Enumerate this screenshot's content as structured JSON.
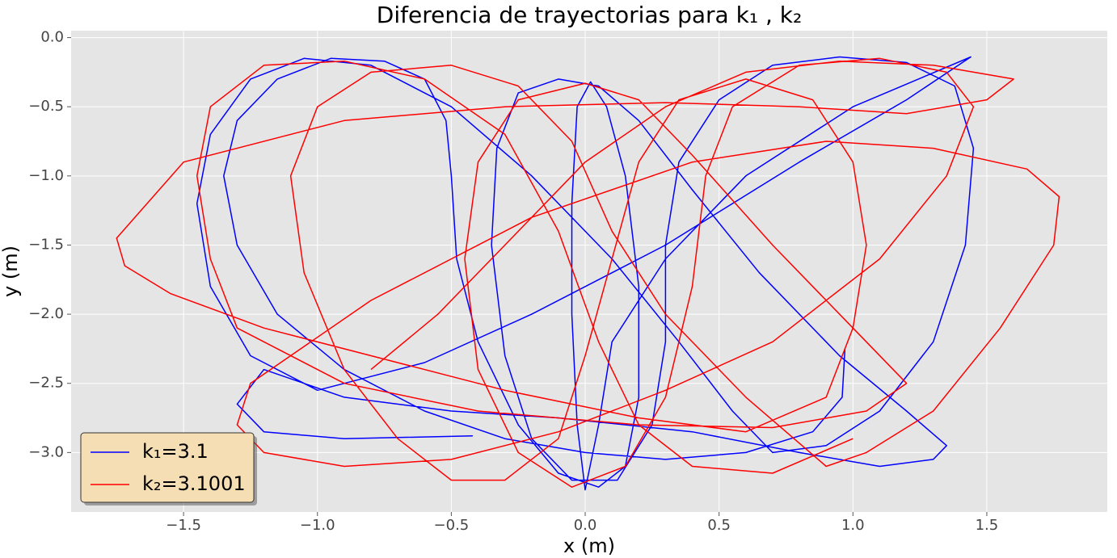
{
  "chart_data": {
    "type": "line",
    "title": "Diferencia de trayectorias para k₁ , k₂",
    "x_label": "x (m)",
    "y_label": "y (m)",
    "xlim": [
      -1.92,
      1.95
    ],
    "ylim": [
      -3.43,
      0.05
    ],
    "xticks": [
      {
        "value": -1.5,
        "label": "−1.5"
      },
      {
        "value": -1.0,
        "label": "−1.0"
      },
      {
        "value": -0.5,
        "label": "−0.5"
      },
      {
        "value": 0.0,
        "label": "0.0"
      },
      {
        "value": 0.5,
        "label": "0.5"
      },
      {
        "value": 1.0,
        "label": "1.0"
      },
      {
        "value": 1.5,
        "label": "1.5"
      }
    ],
    "yticks": [
      {
        "value": 0.0,
        "label": "0.0"
      },
      {
        "value": -0.5,
        "label": "−0.5"
      },
      {
        "value": -1.0,
        "label": "−1.0"
      },
      {
        "value": -1.5,
        "label": "−1.5"
      },
      {
        "value": -2.0,
        "label": "−2.0"
      },
      {
        "value": -2.5,
        "label": "−2.5"
      },
      {
        "value": -3.0,
        "label": "−3.0"
      }
    ],
    "grid": true,
    "legend": "lower left",
    "series": [
      {
        "name": "k₁=3.1",
        "color": "#0000ff",
        "x": [
          0.97,
          0.96,
          0.85,
          0.6,
          0.3,
          0.0,
          -0.3,
          -0.6,
          -0.9,
          -1.15,
          -1.3,
          -1.35,
          -1.3,
          -1.15,
          -0.95,
          -0.75,
          -0.6,
          -0.52,
          -0.5,
          -0.48,
          -0.4,
          -0.25,
          -0.1,
          0.05,
          0.15,
          0.2,
          0.2,
          0.15,
          0.08,
          0.02,
          -0.03,
          -0.05,
          -0.05,
          -0.03,
          0.0,
          0.05,
          0.1,
          0.3,
          0.6,
          1.0,
          1.44,
          1.2,
          0.8,
          0.3,
          -0.2,
          -0.6,
          -1.0,
          -1.25,
          -1.4,
          -1.45,
          -1.4,
          -1.25,
          -1.05,
          -0.8,
          -0.5,
          -0.2,
          0.1,
          0.35,
          0.55,
          0.7,
          0.9,
          1.1,
          1.3,
          1.42,
          1.45,
          1.38,
          1.2,
          0.95,
          0.7,
          0.5,
          0.35,
          0.3,
          0.3,
          0.25,
          0.12,
          -0.05,
          -0.2,
          -0.3,
          -0.35,
          -0.33,
          -0.25,
          -0.1,
          0.05,
          0.2,
          0.4,
          0.65,
          0.95,
          1.2,
          1.35,
          1.3,
          1.1,
          0.8,
          0.4,
          -0.1,
          -0.5,
          -0.9,
          -1.2,
          -1.3,
          -1.2,
          -0.9,
          -0.42
        ],
        "values": [
          -2.25,
          -2.6,
          -2.85,
          -3.0,
          -3.05,
          -3.0,
          -2.9,
          -2.7,
          -2.4,
          -2.0,
          -1.5,
          -1.0,
          -0.6,
          -0.3,
          -0.15,
          -0.17,
          -0.3,
          -0.6,
          -1.0,
          -1.6,
          -2.2,
          -2.8,
          -3.15,
          -3.25,
          -3.1,
          -2.6,
          -1.8,
          -1.0,
          -0.5,
          -0.32,
          -0.5,
          -1.2,
          -2.0,
          -2.8,
          -3.27,
          -2.8,
          -2.2,
          -1.6,
          -1.0,
          -0.5,
          -0.14,
          -0.45,
          -0.9,
          -1.5,
          -2.0,
          -2.35,
          -2.55,
          -2.3,
          -1.8,
          -1.2,
          -0.7,
          -0.3,
          -0.15,
          -0.2,
          -0.5,
          -1.0,
          -1.6,
          -2.2,
          -2.7,
          -3.0,
          -2.95,
          -2.7,
          -2.2,
          -1.5,
          -0.8,
          -0.35,
          -0.18,
          -0.14,
          -0.2,
          -0.45,
          -0.9,
          -1.5,
          -2.2,
          -2.8,
          -3.2,
          -3.2,
          -2.9,
          -2.3,
          -1.5,
          -0.8,
          -0.4,
          -0.3,
          -0.35,
          -0.6,
          -1.1,
          -1.7,
          -2.3,
          -2.7,
          -2.95,
          -3.05,
          -3.1,
          -3.0,
          -2.85,
          -2.75,
          -2.7,
          -2.6,
          -2.4,
          -2.65,
          -2.85,
          -2.9,
          -2.88
        ]
      },
      {
        "name": "k₂=3.1001",
        "color": "#ff0000",
        "x": [
          -0.8,
          -0.55,
          -0.3,
          0.0,
          0.3,
          0.6,
          0.95,
          1.3,
          1.6,
          1.5,
          1.2,
          0.8,
          0.3,
          -0.3,
          -0.9,
          -1.5,
          -1.75,
          -1.72,
          -1.55,
          -1.2,
          -0.8,
          -0.3,
          0.2,
          0.6,
          0.9,
          1.0,
          1.05,
          1.0,
          0.85,
          0.6,
          0.35,
          0.2,
          0.1,
          0.0,
          -0.1,
          -0.3,
          -0.5,
          -0.7,
          -0.9,
          -1.05,
          -1.1,
          -1.0,
          -0.8,
          -0.5,
          -0.25,
          -0.05,
          0.1,
          0.3,
          0.6,
          0.9,
          1.05,
          1.3,
          1.55,
          1.75,
          1.77,
          1.65,
          1.3,
          0.9,
          0.4,
          -0.2,
          -0.8,
          -1.25,
          -1.3,
          -1.2,
          -0.9,
          -0.5,
          -0.1,
          0.3,
          0.7,
          1.1,
          1.35,
          1.45,
          1.35,
          1.1,
          0.8,
          0.55,
          0.45,
          0.4,
          0.3,
          0.15,
          -0.05,
          -0.25,
          -0.4,
          -0.45,
          -0.4,
          -0.25,
          0.0,
          0.2,
          0.4,
          0.7,
          1.0,
          1.2,
          1.05,
          0.7,
          0.2,
          -0.4,
          -0.9,
          -1.3,
          -1.4,
          -1.45,
          -1.4,
          -1.2,
          -0.9,
          -0.6,
          -0.3,
          -0.1,
          0.05,
          0.2,
          0.4,
          0.7,
          1.0
        ],
        "values": [
          -2.4,
          -2.0,
          -1.5,
          -0.9,
          -0.5,
          -0.25,
          -0.17,
          -0.2,
          -0.3,
          -0.45,
          -0.55,
          -0.5,
          -0.47,
          -0.5,
          -0.6,
          -0.9,
          -1.45,
          -1.65,
          -1.85,
          -2.1,
          -2.3,
          -2.55,
          -2.75,
          -2.85,
          -2.6,
          -2.1,
          -1.5,
          -0.9,
          -0.45,
          -0.3,
          -0.45,
          -0.9,
          -1.6,
          -2.3,
          -2.9,
          -3.2,
          -3.2,
          -2.9,
          -2.4,
          -1.7,
          -1.0,
          -0.5,
          -0.25,
          -0.2,
          -0.35,
          -0.75,
          -1.4,
          -2.0,
          -2.6,
          -3.1,
          -3.0,
          -2.7,
          -2.1,
          -1.5,
          -1.15,
          -0.95,
          -0.8,
          -0.75,
          -0.9,
          -1.3,
          -1.9,
          -2.5,
          -2.8,
          -3.0,
          -3.1,
          -3.05,
          -2.85,
          -2.55,
          -2.2,
          -1.6,
          -1.0,
          -0.5,
          -0.25,
          -0.15,
          -0.2,
          -0.5,
          -1.0,
          -1.8,
          -2.6,
          -3.1,
          -3.25,
          -3.0,
          -2.4,
          -1.6,
          -0.9,
          -0.45,
          -0.33,
          -0.45,
          -0.85,
          -1.5,
          -2.1,
          -2.5,
          -2.7,
          -2.82,
          -2.8,
          -2.7,
          -2.5,
          -2.1,
          -1.6,
          -1.0,
          -0.5,
          -0.2,
          -0.17,
          -0.3,
          -0.7,
          -1.4,
          -2.2,
          -2.8,
          -3.1,
          -3.15,
          -2.9
        ]
      }
    ]
  }
}
